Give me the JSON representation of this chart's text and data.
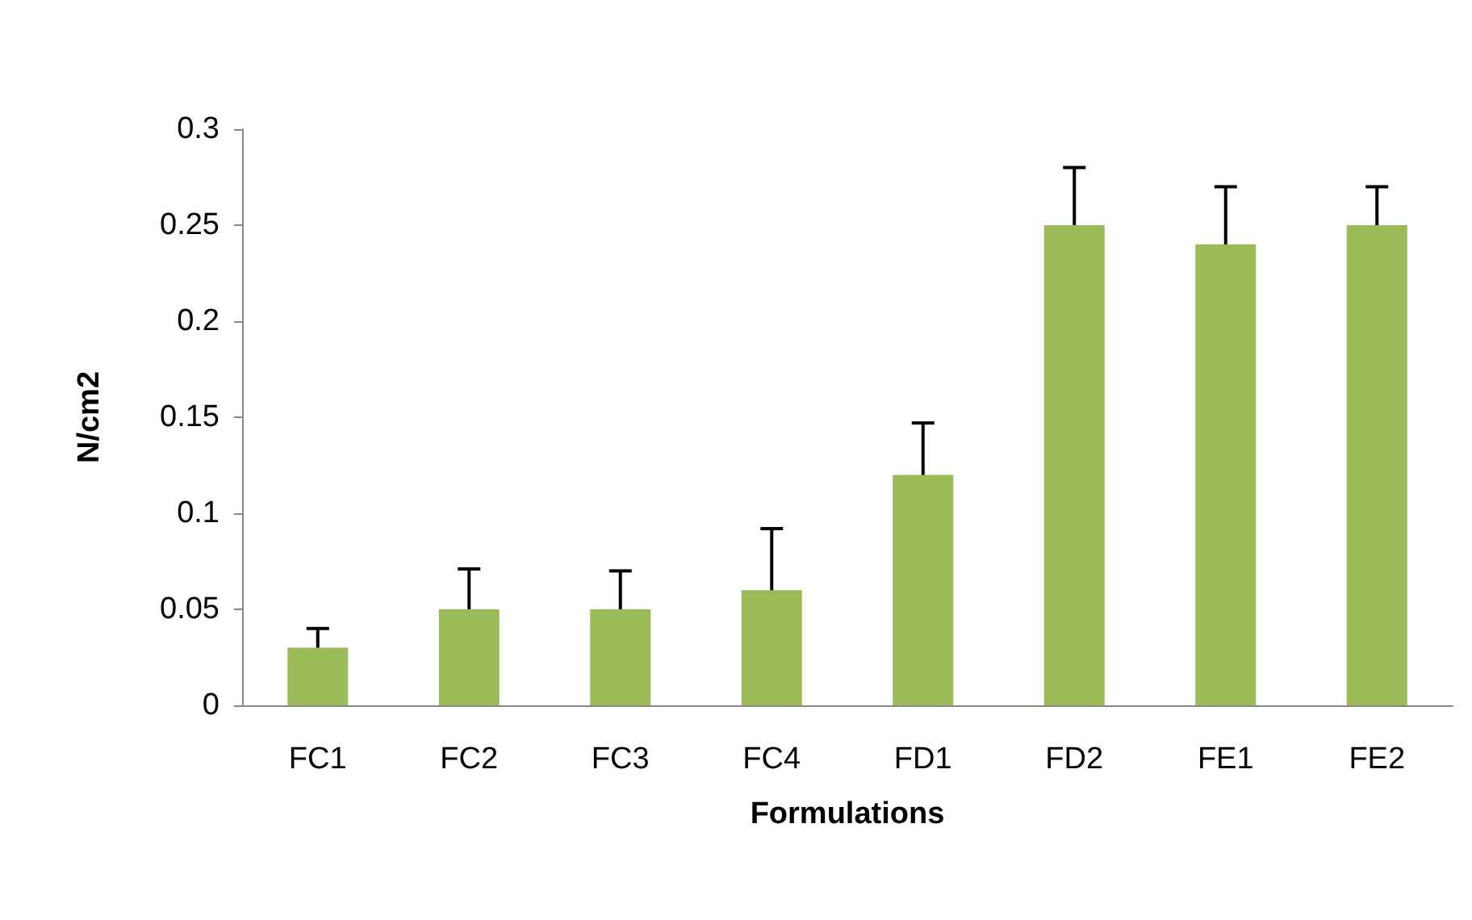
{
  "chart_data": {
    "type": "bar",
    "xlabel": "Formulations",
    "ylabel": "N/cm2",
    "categories": [
      "FC1",
      "FC2",
      "FC3",
      "FC4",
      "FD1",
      "FD2",
      "FE1",
      "FE2"
    ],
    "values": [
      0.03,
      0.05,
      0.05,
      0.06,
      0.12,
      0.25,
      0.24,
      0.25
    ],
    "errors": [
      0.01,
      0.021,
      0.02,
      0.032,
      0.027,
      0.03,
      0.03,
      0.02
    ],
    "color": "#9bbb59",
    "ylim": [
      0,
      0.3
    ],
    "yticks": [
      0,
      0.05,
      0.1,
      0.15,
      0.2,
      0.25,
      0.3
    ],
    "grid": false
  }
}
